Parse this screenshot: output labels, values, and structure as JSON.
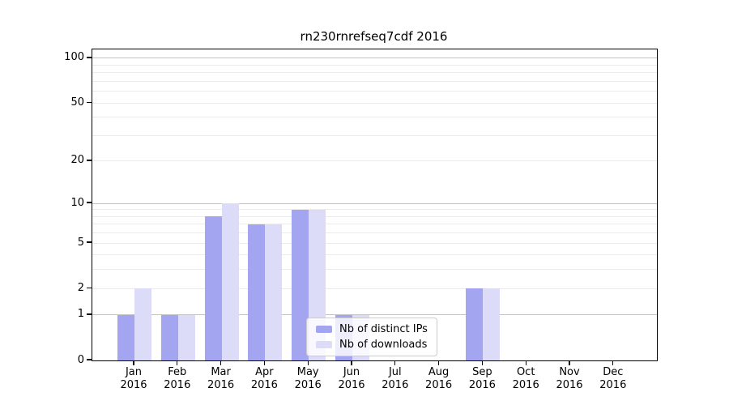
{
  "chart_data": {
    "type": "bar",
    "title": "rn230rnrefseq7cdf 2016",
    "categories": [
      "Jan 2016",
      "Feb 2016",
      "Mar 2016",
      "Apr 2016",
      "May 2016",
      "Jun 2016",
      "Jul 2016",
      "Aug 2016",
      "Sep 2016",
      "Oct 2016",
      "Nov 2016",
      "Dec 2016"
    ],
    "series": [
      {
        "name": "Nb of distinct IPs",
        "color_key": "distinct_ips",
        "values": [
          1,
          1,
          8,
          7,
          9,
          1,
          0,
          0,
          2,
          0,
          0,
          0
        ]
      },
      {
        "name": "Nb of downloads",
        "color_key": "downloads",
        "values": [
          2,
          1,
          10,
          7,
          9,
          1,
          0,
          0,
          2,
          0,
          0,
          0
        ]
      }
    ],
    "xlabel": "",
    "ylabel": "",
    "y_axis": {
      "scale": "log1p",
      "ticks": [
        0,
        1,
        2,
        5,
        10,
        20,
        50,
        100
      ],
      "top_value": 115
    },
    "grid": {
      "on": true,
      "major_values": [
        1,
        10,
        100
      ],
      "minor_values": [
        2,
        3,
        4,
        5,
        6,
        7,
        8,
        9,
        20,
        30,
        40,
        50,
        60,
        70,
        80,
        90
      ]
    },
    "legend_position": "lower-right-of-center"
  },
  "legend": {
    "items": [
      {
        "label": "Nb of distinct IPs"
      },
      {
        "label": "Nb of downloads"
      }
    ]
  },
  "colors": {
    "distinct_ips": "#a4a5f1",
    "downloads": "#dcdcf8",
    "grid_major": "#c3c3c3",
    "grid_minor": "#ebebeb",
    "spine": "#000000",
    "legend_border": "#cccccc"
  }
}
